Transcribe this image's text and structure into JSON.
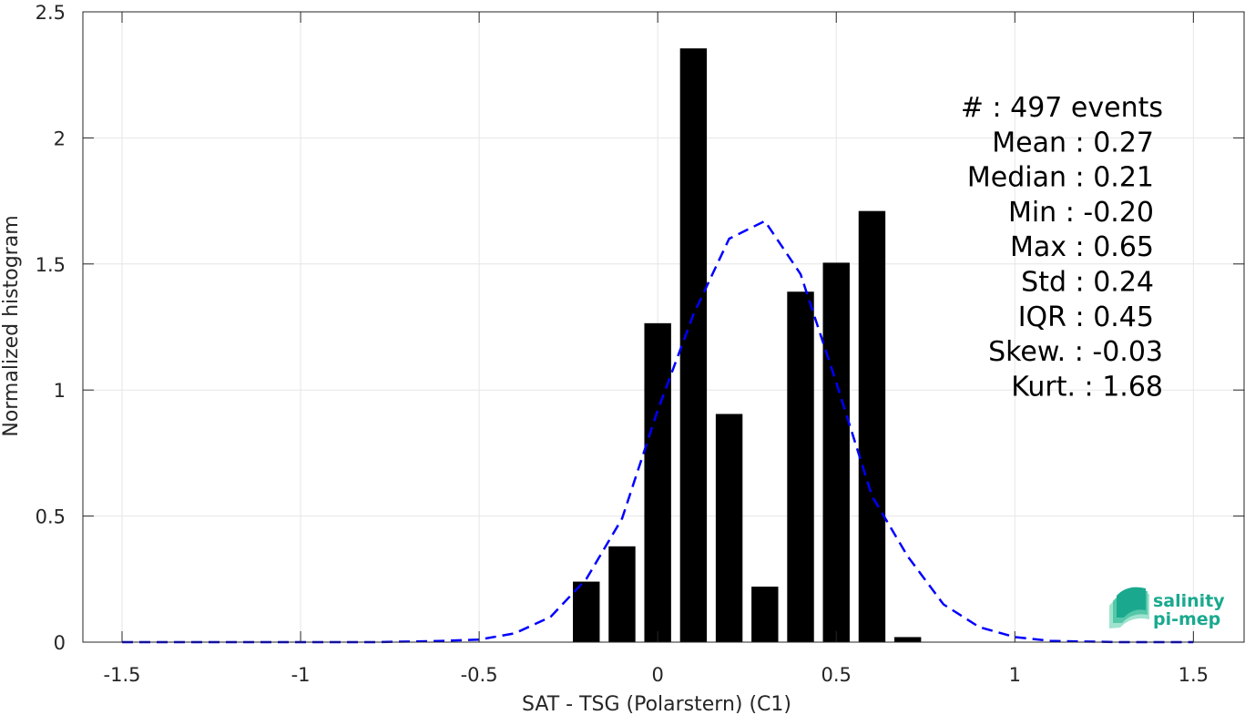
{
  "chart_data": {
    "type": "bar",
    "title": "",
    "xlabel": "SAT - TSG (Polarstern) (C1)",
    "ylabel": "Normalized histogram",
    "xlim": [
      -1.5,
      1.5
    ],
    "ylim": [
      0,
      2.5
    ],
    "grid": true,
    "xticks": [
      -1.5,
      -1,
      -0.5,
      0,
      0.5,
      1,
      1.5
    ],
    "xtick_labels": [
      "-1.5",
      "-1",
      "-0.5",
      "0",
      "0.5",
      "1",
      "1.5"
    ],
    "yticks": [
      0,
      0.5,
      1,
      1.5,
      2,
      2.5
    ],
    "ytick_labels": [
      "0",
      "0.5",
      "1",
      "1.5",
      "2",
      "2.5"
    ],
    "bar_width": 0.075,
    "bars": [
      {
        "x": -0.2,
        "value": 0.24
      },
      {
        "x": -0.1,
        "value": 0.38
      },
      {
        "x": 0.0,
        "value": 1.265
      },
      {
        "x": 0.1,
        "value": 2.355
      },
      {
        "x": 0.2,
        "value": 0.905
      },
      {
        "x": 0.3,
        "value": 0.22
      },
      {
        "x": 0.4,
        "value": 1.39
      },
      {
        "x": 0.5,
        "value": 1.505
      },
      {
        "x": 0.6,
        "value": 1.71
      },
      {
        "x": 0.7,
        "value": 0.02
      }
    ],
    "fit_curve": {
      "style": "dashed",
      "color": "#0000ff",
      "points": [
        [
          -1.5,
          0
        ],
        [
          -1.4,
          0
        ],
        [
          -1.3,
          0
        ],
        [
          -1.2,
          0
        ],
        [
          -1.1,
          0
        ],
        [
          -1.0,
          0
        ],
        [
          -0.9,
          0
        ],
        [
          -0.8,
          0
        ],
        [
          -0.7,
          0.002
        ],
        [
          -0.6,
          0.005
        ],
        [
          -0.5,
          0.01
        ],
        [
          -0.4,
          0.035
        ],
        [
          -0.3,
          0.1
        ],
        [
          -0.2,
          0.25
        ],
        [
          -0.1,
          0.49
        ],
        [
          0.0,
          0.92
        ],
        [
          0.1,
          1.3
        ],
        [
          0.2,
          1.6
        ],
        [
          0.3,
          1.67
        ],
        [
          0.4,
          1.46
        ],
        [
          0.5,
          1.03
        ],
        [
          0.6,
          0.58
        ],
        [
          0.7,
          0.34
        ],
        [
          0.8,
          0.15
        ],
        [
          0.9,
          0.06
        ],
        [
          1.0,
          0.02
        ],
        [
          1.1,
          0.005
        ],
        [
          1.2,
          0.002
        ],
        [
          1.3,
          0
        ],
        [
          1.4,
          0
        ],
        [
          1.5,
          0
        ]
      ]
    },
    "colors": {
      "bars": "#000000",
      "fit": "#0000ff",
      "grid": "#e6e6e6",
      "axis": "#262626"
    },
    "annotations": [
      "#  : 497 events",
      "Mean : 0.27",
      "Median : 0.21",
      "Min : -0.20",
      "Max : 0.65",
      "Std : 0.24",
      "IQR : 0.45",
      "Skew. : -0.03",
      "Kurt. : 1.68"
    ]
  },
  "logo": {
    "line1": "salinity",
    "line2": "pi-mep",
    "color": "#1aa98f"
  }
}
